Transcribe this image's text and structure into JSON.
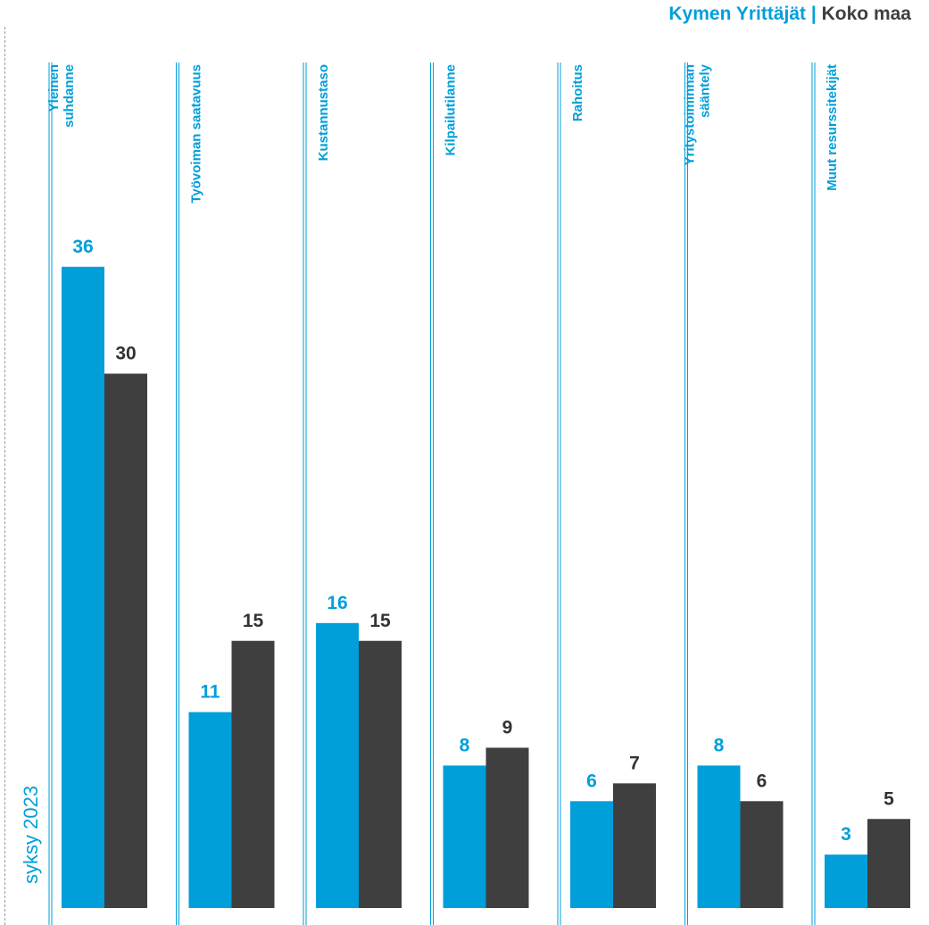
{
  "chart_data": {
    "type": "bar",
    "categories": [
      [
        "Yleinen",
        "suhdanne"
      ],
      [
        "Työvoiman saatavuus"
      ],
      [
        "Kustannustaso"
      ],
      [
        "Kilpailutilanne"
      ],
      [
        "Rahoitus"
      ],
      [
        "Yritystoiminnan",
        "sääntely"
      ],
      [
        "Muut resurssitekijät"
      ]
    ],
    "series": [
      {
        "name": "Kymen Yrittäjät",
        "values": [
          36,
          11,
          16,
          8,
          6,
          8,
          3
        ],
        "color": "#009FDA"
      },
      {
        "name": "Koko maa",
        "values": [
          30,
          15,
          15,
          9,
          7,
          6,
          5
        ],
        "color": "#3F3F3F"
      }
    ],
    "ylim": [
      0,
      40
    ],
    "grid": false,
    "legend_position": "top-right",
    "side_label": "syksy 2023"
  },
  "legend": {
    "separator": "|"
  }
}
